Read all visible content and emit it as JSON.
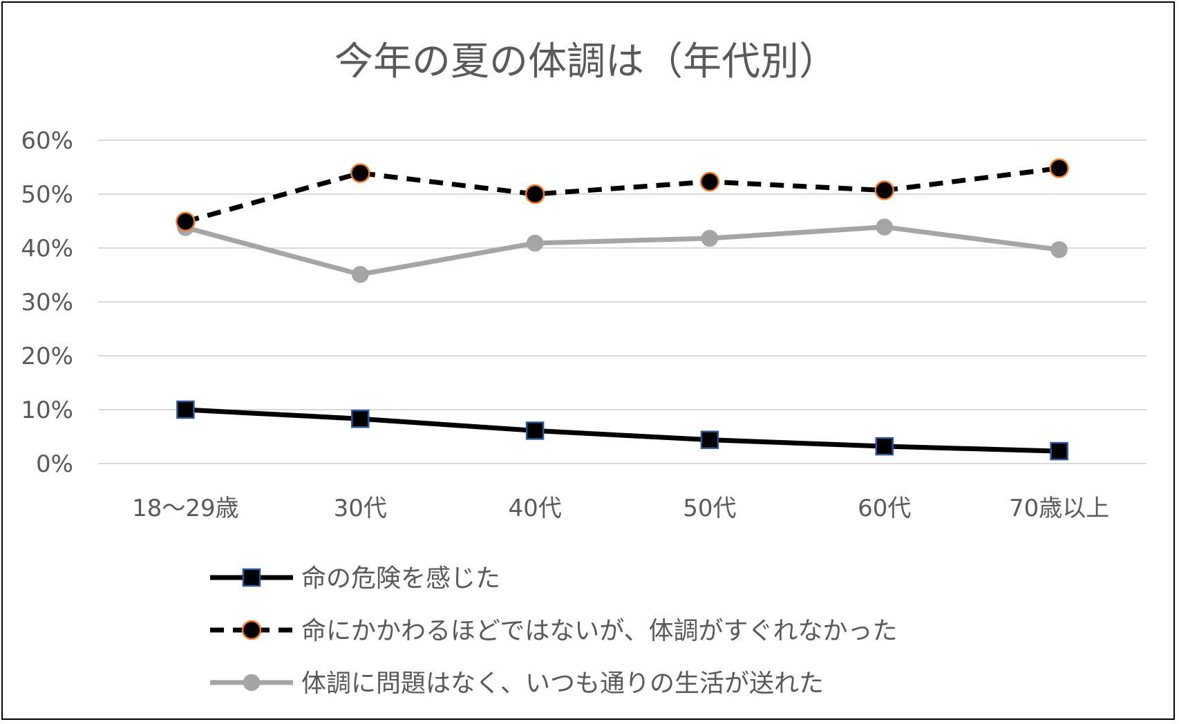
{
  "chart_data": {
    "type": "line",
    "title": "今年の夏の体調は（年代別）",
    "xlabel": "",
    "ylabel": "",
    "categories": [
      "18～29歳",
      "30代",
      "40代",
      "50代",
      "60代",
      "70歳以上"
    ],
    "ylim": [
      0,
      60
    ],
    "yticks": [
      "0%",
      "10%",
      "20%",
      "30%",
      "40%",
      "50%",
      "60%"
    ],
    "ytick_values": [
      0,
      10,
      20,
      30,
      40,
      50,
      60
    ],
    "grid": true,
    "legend_position": "bottom",
    "series": [
      {
        "name": "命の危険を感じた",
        "values": [
          10.0,
          8.3,
          6.1,
          4.4,
          3.2,
          2.3
        ],
        "line_color": "#000000",
        "line_style": "solid",
        "marker": "square",
        "marker_fill": "#000000",
        "marker_edge": "#2F5597"
      },
      {
        "name": "命にかかわるほどではないが、体調がすぐれなかった",
        "values": [
          44.9,
          53.9,
          50.0,
          52.3,
          50.7,
          54.8
        ],
        "line_color": "#000000",
        "line_style": "dashed",
        "marker": "circle",
        "marker_fill": "#000000",
        "marker_edge": "#ED7D31"
      },
      {
        "name": "体調に問題はなく、いつも通りの生活が送れた",
        "values": [
          43.8,
          35.1,
          40.9,
          41.8,
          43.9,
          39.7
        ],
        "line_color": "#A5A5A5",
        "line_style": "solid",
        "marker": "circle",
        "marker_fill": "#A5A5A5",
        "marker_edge": "#A5A5A5"
      }
    ]
  }
}
